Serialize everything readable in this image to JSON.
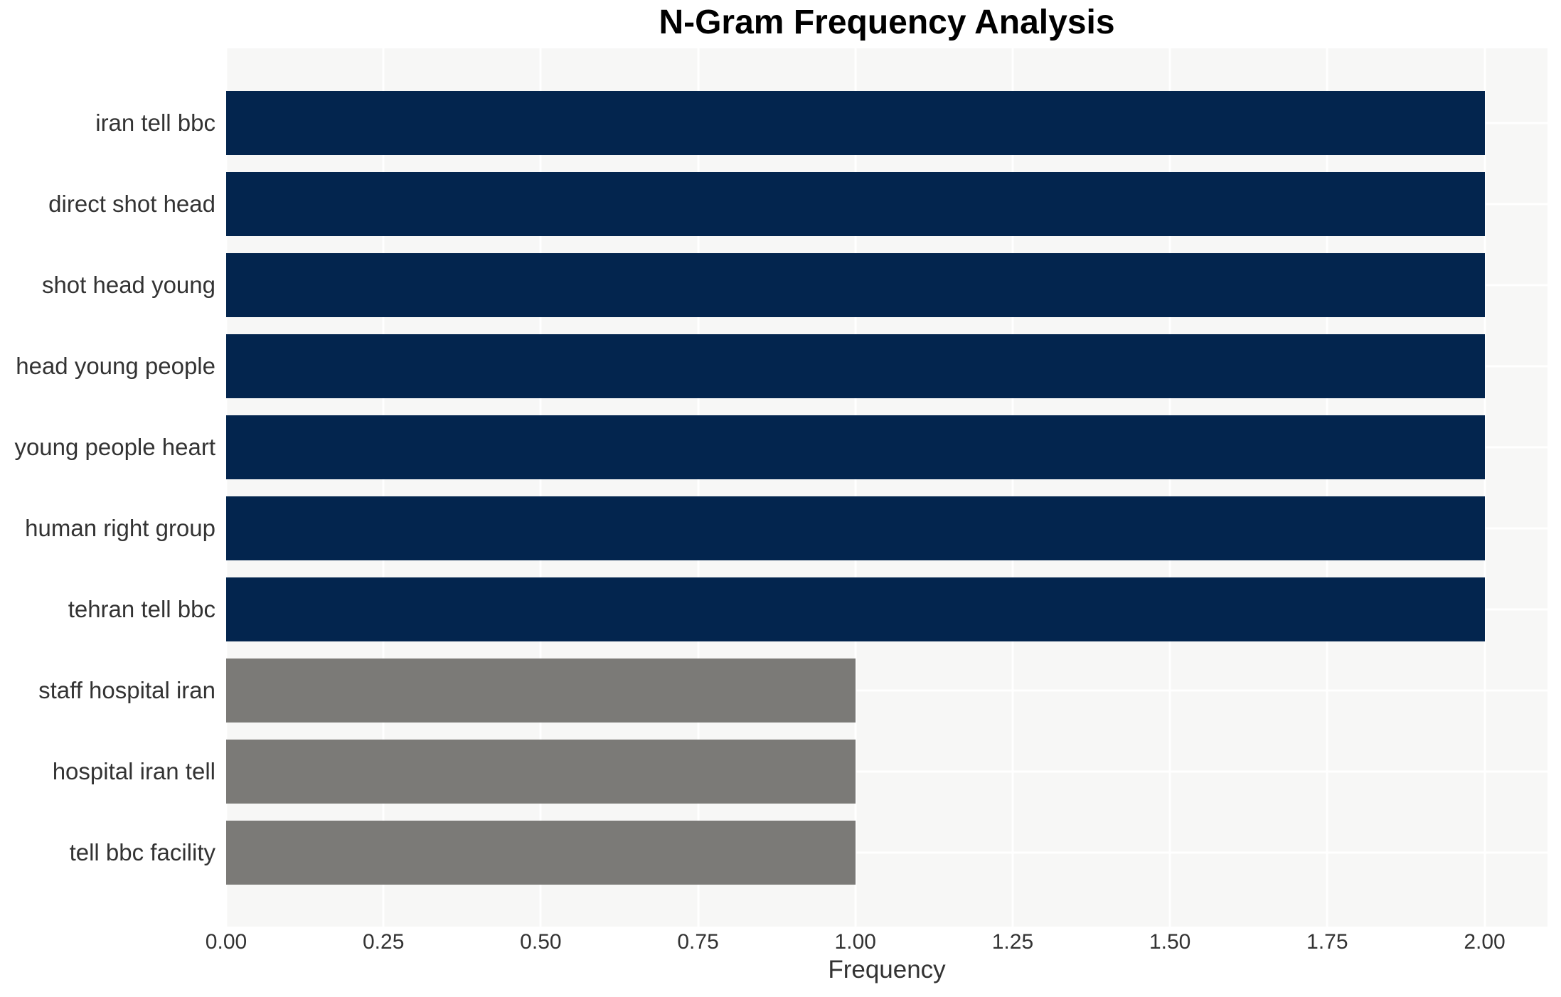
{
  "chart_data": {
    "type": "bar",
    "orientation": "horizontal",
    "title": "N-Gram Frequency Analysis",
    "xlabel": "Frequency",
    "ylabel": "",
    "categories": [
      "iran tell bbc",
      "direct shot head",
      "shot head young",
      "head young people",
      "young people heart",
      "human right group",
      "tehran tell bbc",
      "staff hospital iran",
      "hospital iran tell",
      "tell bbc facility"
    ],
    "values": [
      2,
      2,
      2,
      2,
      2,
      2,
      2,
      1,
      1,
      1
    ],
    "bar_colors": [
      "#03254e",
      "#03254e",
      "#03254e",
      "#03254e",
      "#03254e",
      "#03254e",
      "#03254e",
      "#7b7a77",
      "#7b7a77",
      "#7b7a77"
    ],
    "xticks": [
      {
        "label": "0.00",
        "value": 0.0
      },
      {
        "label": "0.25",
        "value": 0.25
      },
      {
        "label": "0.50",
        "value": 0.5
      },
      {
        "label": "0.75",
        "value": 0.75
      },
      {
        "label": "1.00",
        "value": 1.0
      },
      {
        "label": "1.25",
        "value": 1.25
      },
      {
        "label": "1.50",
        "value": 1.5
      },
      {
        "label": "1.75",
        "value": 1.75
      },
      {
        "label": "2.00",
        "value": 2.0
      }
    ],
    "xlim": [
      0,
      2.1
    ],
    "grid": "on",
    "legend": "none",
    "style": {
      "plot_background": "#f7f7f6",
      "figure_background": "#ffffff",
      "grid_color": "#ffffff",
      "tick_text_color": "#333333",
      "title_color": "#000000"
    }
  }
}
